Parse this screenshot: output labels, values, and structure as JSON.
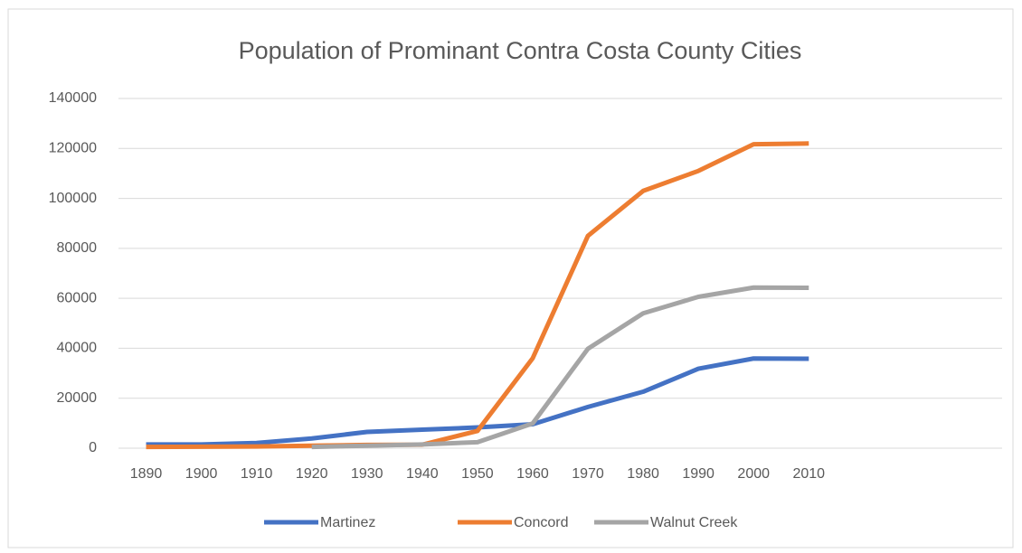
{
  "chart_data": {
    "type": "line",
    "title": "Population of Prominant Contra Costa County Cities",
    "categories": [
      "1890",
      "1900",
      "1910",
      "1920",
      "1930",
      "1940",
      "1950",
      "1960",
      "1970",
      "1980",
      "1990",
      "2000",
      "2010",
      null,
      null,
      null
    ],
    "series": [
      {
        "name": "Martinez",
        "color": "#4472c4",
        "values": [
          1500,
          1500,
          2100,
          3900,
          6500,
          7400,
          8300,
          9600,
          16500,
          22600,
          31800,
          35900,
          35800,
          null,
          null,
          null
        ]
      },
      {
        "name": "Concord",
        "color": "#ed7d31",
        "values": [
          500,
          600,
          700,
          1000,
          1300,
          1400,
          6900,
          36000,
          85000,
          103000,
          111000,
          121700,
          122000,
          null,
          null,
          null
        ]
      },
      {
        "name": "Walnut Creek",
        "color": "#a5a5a5",
        "values": [
          null,
          null,
          null,
          500,
          1000,
          1500,
          2400,
          9900,
          39800,
          54000,
          60600,
          64300,
          64200,
          null,
          null,
          null
        ]
      }
    ],
    "ylim": [
      0,
      140000
    ],
    "yticks": [
      0,
      20000,
      40000,
      60000,
      80000,
      100000,
      120000,
      140000
    ],
    "grid": true,
    "legend": "bottom"
  }
}
